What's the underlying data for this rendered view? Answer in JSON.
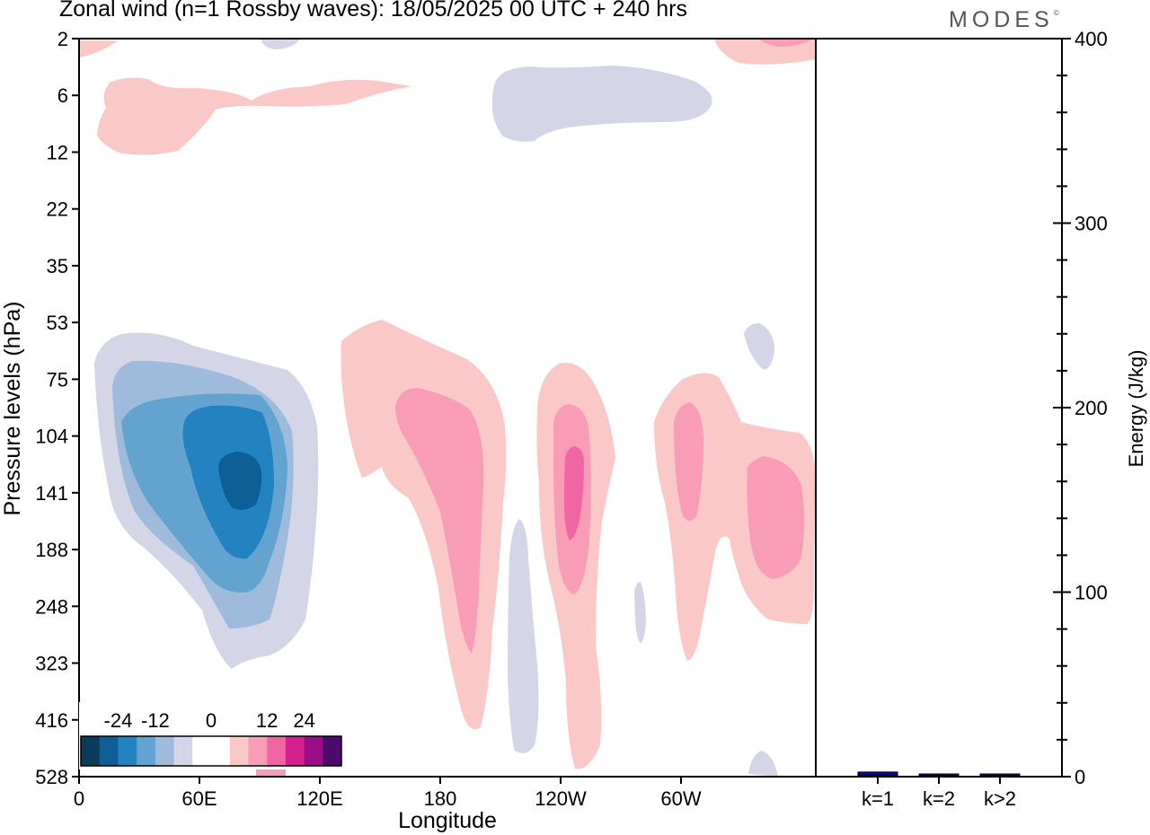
{
  "header": {
    "title": "Zonal wind (n=1 Rossby waves):  18/05/2025  00 UTC  + 240 hrs",
    "brand": "MODES",
    "brand_mark": "©"
  },
  "chart_data": [
    {
      "type": "heatmap",
      "title": "Zonal wind (n=1 Rossby waves):  18/05/2025  00 UTC  + 240 hrs",
      "xlabel": "Longitude",
      "ylabel": "Pressure levels (hPa)",
      "x_ticks": [
        "0",
        "60E",
        "120E",
        "180",
        "120W",
        "60W"
      ],
      "y_ticks": [
        "2",
        "6",
        "12",
        "22",
        "35",
        "53",
        "75",
        "104",
        "141",
        "188",
        "248",
        "323",
        "416",
        "528"
      ],
      "colorbar": {
        "labels": [
          "-24",
          "-12",
          "0",
          "12",
          "24"
        ],
        "colors": [
          "#0b3c5d",
          "#0d5f95",
          "#2283c0",
          "#63a3cf",
          "#9fbbdc",
          "#d4d6e8",
          "#ffffff",
          "#ffffff",
          "#fac8c6",
          "#f99cb5",
          "#f265a3",
          "#d61f8e",
          "#9a0d86",
          "#4c0a6b"
        ]
      },
      "features": [
        {
          "sign": "negative",
          "longitude": 75,
          "level": 141,
          "peak": -24
        },
        {
          "sign": "positive",
          "longitude": 240,
          "level": 141,
          "peak": 18
        },
        {
          "sign": "positive",
          "longitude": 190,
          "level": 141,
          "peak": 12
        },
        {
          "sign": "positive",
          "longitude": 322,
          "level": 141,
          "peak": 12
        },
        {
          "sign": "positive",
          "longitude": 290,
          "level": 125,
          "peak": 12
        },
        {
          "sign": "negative",
          "longitude": 215,
          "level": 6,
          "peak": -4
        },
        {
          "sign": "positive",
          "longitude": 30,
          "level": 6,
          "peak": 4
        }
      ]
    },
    {
      "type": "bar",
      "categories": [
        "k=1",
        "k=2",
        "k>2"
      ],
      "values": [
        2,
        0.6,
        0.4
      ],
      "ylabel": "Energy (J/kg)",
      "ylim": [
        0,
        400
      ],
      "y_ticks": [
        "0",
        "100",
        "200",
        "300",
        "400"
      ],
      "bar_color": "#0a0a8c"
    }
  ]
}
